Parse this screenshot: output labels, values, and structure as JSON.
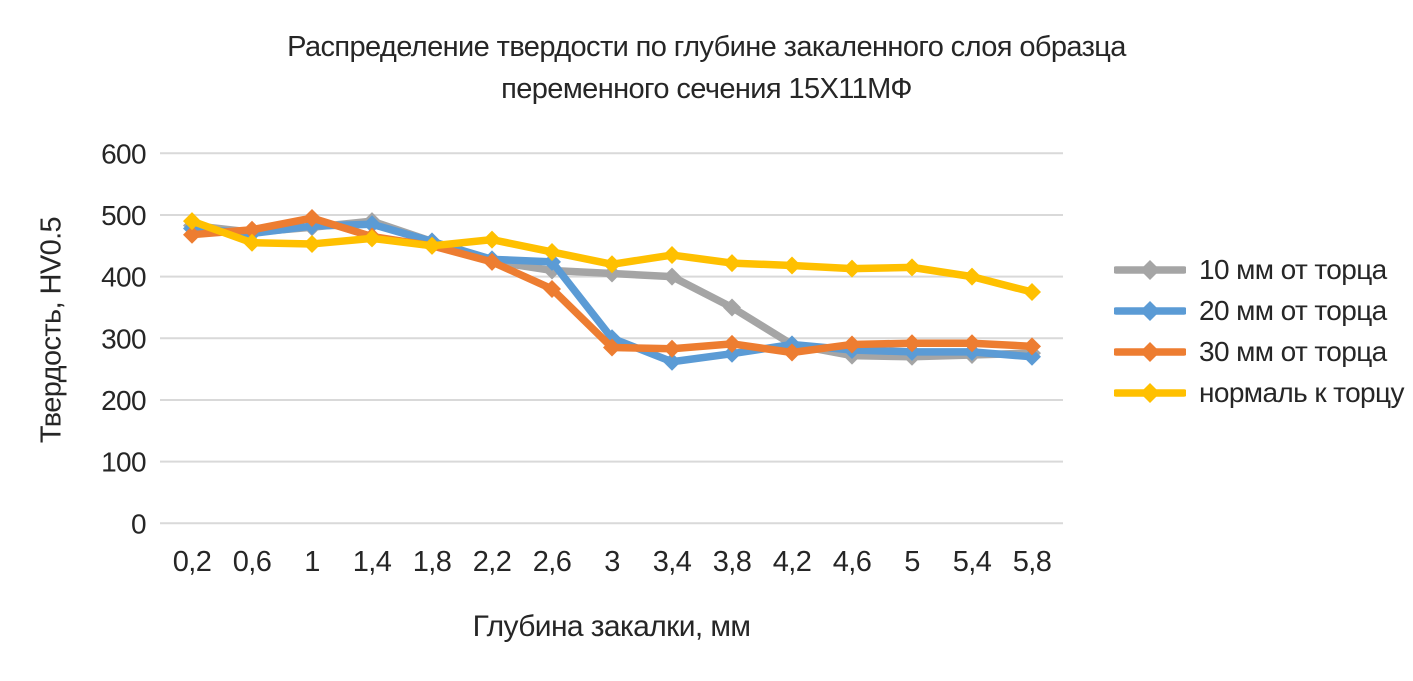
{
  "chart_data": {
    "type": "line",
    "title": "Распределение твердости по глубине закаленного слоя образца\nпеременного сечения 15Х11МФ",
    "xlabel": "Глубина закалки, мм",
    "ylabel": "Твердость, HV0.5",
    "categories": [
      "0,2",
      "0,6",
      "1",
      "1,4",
      "1,8",
      "2,2",
      "2,6",
      "3",
      "3,4",
      "3,8",
      "4,2",
      "4,6",
      "5",
      "5,4",
      "5,8"
    ],
    "series": [
      {
        "name": "10 мм от торца",
        "color": "#A5A5A5",
        "values": [
          483,
          472,
          480,
          490,
          457,
          425,
          410,
          405,
          400,
          350,
          290,
          272,
          270,
          273,
          276
        ]
      },
      {
        "name": "20 мм от торца",
        "color": "#5B9BD5",
        "values": [
          478,
          470,
          482,
          485,
          457,
          428,
          424,
          300,
          262,
          275,
          290,
          281,
          278,
          278,
          270
        ]
      },
      {
        "name": "30 мм от торца",
        "color": "#ED7D31",
        "values": [
          468,
          476,
          495,
          465,
          450,
          424,
          380,
          285,
          283,
          291,
          277,
          290,
          292,
          292,
          287
        ]
      },
      {
        "name": "нормаль к торцу",
        "color": "#FFC000",
        "values": [
          490,
          455,
          453,
          462,
          450,
          460,
          440,
          420,
          435,
          422,
          418,
          413,
          415,
          400,
          375
        ]
      }
    ],
    "ylim": [
      0,
      600
    ],
    "ytick_step": 100,
    "grid": "horizontal",
    "gridline_color": "#D9D9D9",
    "text_color": "#262626",
    "legend_position": "right",
    "marker": "diamond"
  }
}
